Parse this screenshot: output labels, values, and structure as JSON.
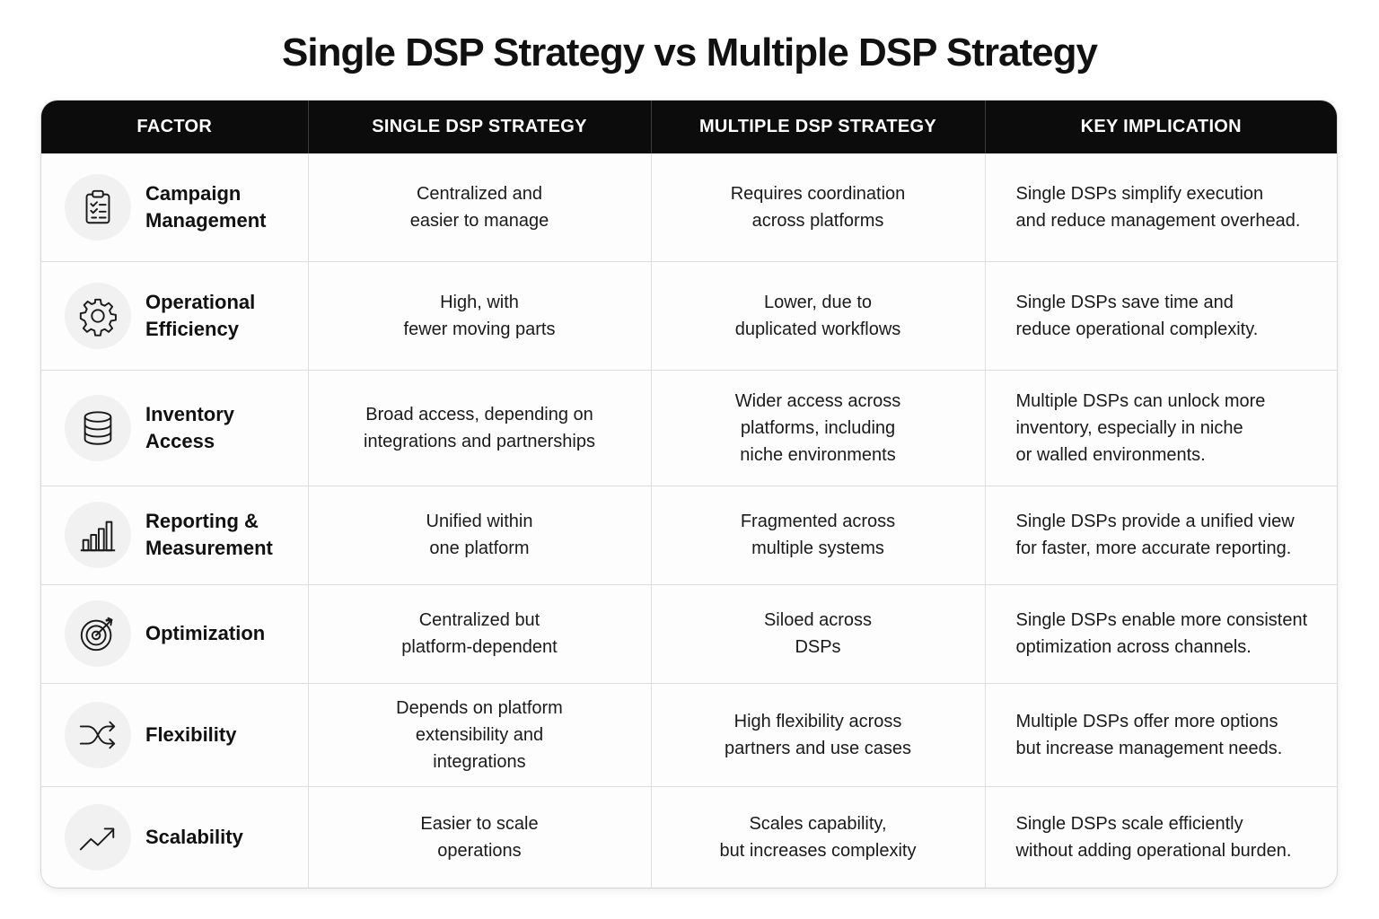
{
  "title": "Single DSP Strategy vs Multiple DSP Strategy",
  "headers": {
    "factor": "FACTOR",
    "single": "SINGLE DSP STRATEGY",
    "multiple": "MULTIPLE DSP STRATEGY",
    "implication": "KEY IMPLICATION"
  },
  "rows": [
    {
      "icon": "clipboard-checklist-icon",
      "factor": [
        "Campaign",
        "Management"
      ],
      "single": [
        "Centralized and",
        "easier to manage"
      ],
      "multiple": [
        "Requires coordination",
        "across platforms"
      ],
      "implication": [
        "Single DSPs simplify execution",
        "and reduce management overhead."
      ]
    },
    {
      "icon": "gear-icon",
      "factor": [
        "Operational",
        "Efficiency"
      ],
      "single": [
        "High, with",
        "fewer moving parts"
      ],
      "multiple": [
        "Lower, due to",
        "duplicated workflows"
      ],
      "implication": [
        "Single DSPs save time and",
        "reduce operational complexity."
      ]
    },
    {
      "icon": "database-icon",
      "factor": [
        "Inventory",
        "Access"
      ],
      "single": [
        "Broad access, depending on",
        "integrations and partnerships"
      ],
      "multiple": [
        "Wider access across",
        "platforms, including",
        "niche environments"
      ],
      "implication": [
        "Multiple DSPs can unlock more",
        "inventory, especially in niche",
        "or walled environments."
      ]
    },
    {
      "icon": "bar-chart-icon",
      "factor": [
        "Reporting &",
        "Measurement"
      ],
      "single": [
        "Unified within",
        "one platform"
      ],
      "multiple": [
        "Fragmented across",
        "multiple systems"
      ],
      "implication": [
        "Single DSPs provide a unified view",
        "for faster, more accurate reporting."
      ]
    },
    {
      "icon": "target-arrow-icon",
      "factor": [
        "Optimization"
      ],
      "single": [
        "Centralized but",
        "platform-dependent"
      ],
      "multiple": [
        "Siloed across",
        "DSPs"
      ],
      "implication": [
        "Single DSPs enable more consistent",
        "optimization across channels."
      ]
    },
    {
      "icon": "shuffle-icon",
      "factor": [
        "Flexibility"
      ],
      "single": [
        "Depends on platform",
        "extensibility and",
        "integrations"
      ],
      "multiple": [
        "High flexibility across",
        "partners and use cases"
      ],
      "implication": [
        "Multiple DSPs offer more options",
        "but increase management needs."
      ]
    },
    {
      "icon": "trend-up-icon",
      "factor": [
        "Scalability"
      ],
      "single": [
        "Easier to scale",
        "operations"
      ],
      "multiple": [
        "Scales capability,",
        "but increases complexity"
      ],
      "implication": [
        "Single DSPs scale efficiently",
        "without adding operational burden."
      ]
    }
  ],
  "colors": {
    "header_bg": "#0c0c0c",
    "header_text": "#ffffff",
    "grid": "#dedede",
    "icon_bg": "#f1f1f1"
  }
}
